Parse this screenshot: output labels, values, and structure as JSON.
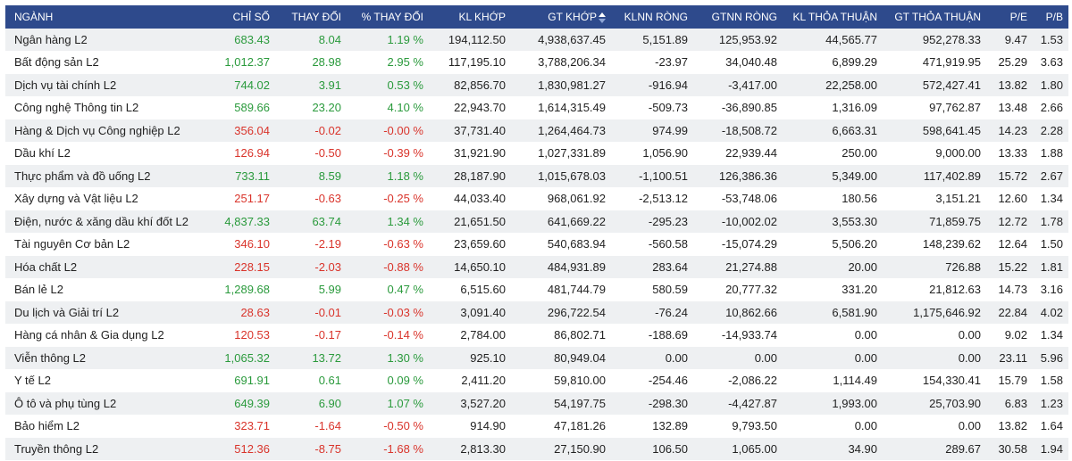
{
  "colors": {
    "header_bg": "#2e4a8c",
    "up": "#2a9a3c",
    "down": "#d9342b",
    "stripe": "#eef0f2"
  },
  "headers": [
    "NGÀNH",
    "CHỈ SỐ",
    "THAY ĐỔI",
    "% THAY ĐỔI",
    "KL KHỚP",
    "GT KHỚP",
    "KLNN RÒNG",
    "GTNN RÒNG",
    "KL THỎA THUẬN",
    "GT THỎA THUẬN",
    "P/E",
    "P/B"
  ],
  "sort_icon": "sort-desc-icon",
  "rows": [
    {
      "name": "Ngân hàng L2",
      "index": "683.43",
      "change": "8.04",
      "pct": "1.19 %",
      "kl_khop": "194,112.50",
      "gt_khop": "4,938,637.45",
      "klnn": "5,151.89",
      "gtnn": "125,953.92",
      "kl_tt": "44,565.77",
      "gt_tt": "952,278.33",
      "pe": "9.47",
      "pb": "1.53",
      "dir": "up"
    },
    {
      "name": "Bất động sản L2",
      "index": "1,012.37",
      "change": "28.98",
      "pct": "2.95 %",
      "kl_khop": "117,195.10",
      "gt_khop": "3,788,206.34",
      "klnn": "-23.97",
      "gtnn": "34,040.48",
      "kl_tt": "6,899.29",
      "gt_tt": "471,919.95",
      "pe": "25.29",
      "pb": "3.63",
      "dir": "up"
    },
    {
      "name": "Dịch vụ tài chính L2",
      "index": "744.02",
      "change": "3.91",
      "pct": "0.53 %",
      "kl_khop": "82,856.70",
      "gt_khop": "1,830,981.27",
      "klnn": "-916.94",
      "gtnn": "-3,417.00",
      "kl_tt": "22,258.00",
      "gt_tt": "572,427.41",
      "pe": "13.82",
      "pb": "1.80",
      "dir": "up"
    },
    {
      "name": "Công nghệ Thông tin L2",
      "index": "589.66",
      "change": "23.20",
      "pct": "4.10 %",
      "kl_khop": "22,943.70",
      "gt_khop": "1,614,315.49",
      "klnn": "-509.73",
      "gtnn": "-36,890.85",
      "kl_tt": "1,316.09",
      "gt_tt": "97,762.87",
      "pe": "13.48",
      "pb": "2.66",
      "dir": "up"
    },
    {
      "name": "Hàng & Dịch vụ Công nghiệp L2",
      "index": "356.04",
      "change": "-0.02",
      "pct": "-0.00 %",
      "kl_khop": "37,731.40",
      "gt_khop": "1,264,464.73",
      "klnn": "974.99",
      "gtnn": "-18,508.72",
      "kl_tt": "6,663.31",
      "gt_tt": "598,641.45",
      "pe": "14.23",
      "pb": "2.28",
      "dir": "down"
    },
    {
      "name": "Dầu khí L2",
      "index": "126.94",
      "change": "-0.50",
      "pct": "-0.39 %",
      "kl_khop": "31,921.90",
      "gt_khop": "1,027,331.89",
      "klnn": "1,056.90",
      "gtnn": "22,939.44",
      "kl_tt": "250.00",
      "gt_tt": "9,000.00",
      "pe": "13.33",
      "pb": "1.88",
      "dir": "down"
    },
    {
      "name": "Thực phẩm và đồ uống L2",
      "index": "733.11",
      "change": "8.59",
      "pct": "1.18 %",
      "kl_khop": "28,187.90",
      "gt_khop": "1,015,678.03",
      "klnn": "-1,100.51",
      "gtnn": "126,386.36",
      "kl_tt": "5,349.00",
      "gt_tt": "117,402.89",
      "pe": "15.72",
      "pb": "2.67",
      "dir": "up"
    },
    {
      "name": "Xây dựng và Vật liệu L2",
      "index": "251.17",
      "change": "-0.63",
      "pct": "-0.25 %",
      "kl_khop": "44,033.40",
      "gt_khop": "968,061.92",
      "klnn": "-2,513.12",
      "gtnn": "-53,748.06",
      "kl_tt": "180.56",
      "gt_tt": "3,151.21",
      "pe": "12.60",
      "pb": "1.34",
      "dir": "down"
    },
    {
      "name": "Điện, nước & xăng dầu khí đốt L2",
      "index": "4,837.33",
      "change": "63.74",
      "pct": "1.34 %",
      "kl_khop": "21,651.50",
      "gt_khop": "641,669.22",
      "klnn": "-295.23",
      "gtnn": "-10,002.02",
      "kl_tt": "3,553.30",
      "gt_tt": "71,859.75",
      "pe": "12.72",
      "pb": "1.78",
      "dir": "up"
    },
    {
      "name": "Tài nguyên Cơ bản L2",
      "index": "346.10",
      "change": "-2.19",
      "pct": "-0.63 %",
      "kl_khop": "23,659.60",
      "gt_khop": "540,683.94",
      "klnn": "-560.58",
      "gtnn": "-15,074.29",
      "kl_tt": "5,506.20",
      "gt_tt": "148,239.62",
      "pe": "12.64",
      "pb": "1.50",
      "dir": "down"
    },
    {
      "name": "Hóa chất L2",
      "index": "228.15",
      "change": "-2.03",
      "pct": "-0.88 %",
      "kl_khop": "14,650.10",
      "gt_khop": "484,931.89",
      "klnn": "283.64",
      "gtnn": "21,274.88",
      "kl_tt": "20.00",
      "gt_tt": "726.88",
      "pe": "15.22",
      "pb": "1.81",
      "dir": "down"
    },
    {
      "name": "Bán lẻ L2",
      "index": "1,289.68",
      "change": "5.99",
      "pct": "0.47 %",
      "kl_khop": "6,515.60",
      "gt_khop": "481,744.79",
      "klnn": "580.59",
      "gtnn": "20,777.32",
      "kl_tt": "331.20",
      "gt_tt": "21,812.63",
      "pe": "14.73",
      "pb": "3.16",
      "dir": "up"
    },
    {
      "name": "Du lịch và Giải trí L2",
      "index": "28.63",
      "change": "-0.01",
      "pct": "-0.03 %",
      "kl_khop": "3,091.40",
      "gt_khop": "296,722.54",
      "klnn": "-76.24",
      "gtnn": "10,862.66",
      "kl_tt": "6,581.90",
      "gt_tt": "1,175,646.92",
      "pe": "22.84",
      "pb": "4.02",
      "dir": "down"
    },
    {
      "name": "Hàng cá nhân & Gia dụng L2",
      "index": "120.53",
      "change": "-0.17",
      "pct": "-0.14 %",
      "kl_khop": "2,784.00",
      "gt_khop": "86,802.71",
      "klnn": "-188.69",
      "gtnn": "-14,933.74",
      "kl_tt": "0.00",
      "gt_tt": "0.00",
      "pe": "9.02",
      "pb": "1.34",
      "dir": "down"
    },
    {
      "name": "Viễn thông L2",
      "index": "1,065.32",
      "change": "13.72",
      "pct": "1.30 %",
      "kl_khop": "925.10",
      "gt_khop": "80,949.04",
      "klnn": "0.00",
      "gtnn": "0.00",
      "kl_tt": "0.00",
      "gt_tt": "0.00",
      "pe": "23.11",
      "pb": "5.96",
      "dir": "up"
    },
    {
      "name": "Y tế L2",
      "index": "691.91",
      "change": "0.61",
      "pct": "0.09 %",
      "kl_khop": "2,411.20",
      "gt_khop": "59,810.00",
      "klnn": "-254.46",
      "gtnn": "-2,086.22",
      "kl_tt": "1,114.49",
      "gt_tt": "154,330.41",
      "pe": "15.79",
      "pb": "1.58",
      "dir": "up"
    },
    {
      "name": "Ô tô và phụ tùng L2",
      "index": "649.39",
      "change": "6.90",
      "pct": "1.07 %",
      "kl_khop": "3,527.20",
      "gt_khop": "54,197.75",
      "klnn": "-298.30",
      "gtnn": "-4,427.87",
      "kl_tt": "1,993.00",
      "gt_tt": "25,703.90",
      "pe": "6.83",
      "pb": "1.23",
      "dir": "up"
    },
    {
      "name": "Bảo hiểm L2",
      "index": "323.71",
      "change": "-1.64",
      "pct": "-0.50 %",
      "kl_khop": "914.90",
      "gt_khop": "47,181.26",
      "klnn": "132.89",
      "gtnn": "9,793.50",
      "kl_tt": "0.00",
      "gt_tt": "0.00",
      "pe": "13.82",
      "pb": "1.64",
      "dir": "down"
    },
    {
      "name": "Truyền thông L2",
      "index": "512.36",
      "change": "-8.75",
      "pct": "-1.68 %",
      "kl_khop": "2,813.30",
      "gt_khop": "27,150.90",
      "klnn": "106.50",
      "gtnn": "1,065.00",
      "kl_tt": "34.90",
      "gt_tt": "289.67",
      "pe": "30.58",
      "pb": "1.94",
      "dir": "down"
    }
  ]
}
